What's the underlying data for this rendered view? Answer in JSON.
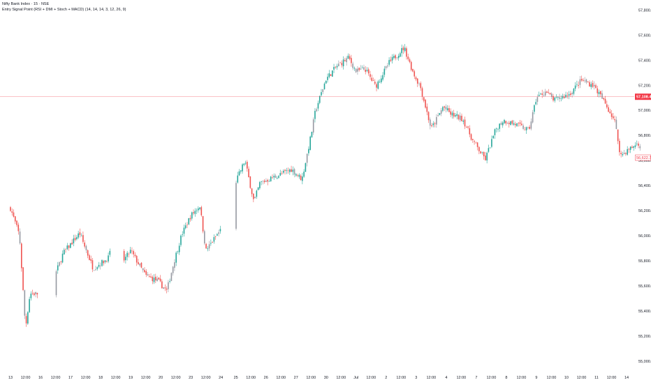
{
  "legend": {
    "symbol_line": "Nifty Bank Index · 15 · NSE",
    "indicator_line": "Entry Signal Point (RSI + DMI + Stoch + MACD) (14, 14, 14, 3, 12, 26, 9)"
  },
  "colors": {
    "up": "#26a69a",
    "down": "#ef5350",
    "neutral": "#9598a1",
    "price_line": "#f23645",
    "axis_text": "#131722"
  },
  "chart_data": {
    "type": "candlestick",
    "title": "Nifty Bank Index · 15 · NSE",
    "y_ticks": [
      "57,800.00",
      "57,600.00",
      "57,400.00",
      "57,200.00",
      "57,000.00",
      "56,800.00",
      "56,600.00",
      "56,400.00",
      "56,200.00",
      "56,000.00",
      "55,800.00",
      "55,600.00",
      "55,400.00",
      "55,200.00",
      "55,000.00"
    ],
    "y_tick_values": [
      57800,
      57600,
      57400,
      57200,
      57000,
      56800,
      56600,
      56400,
      56200,
      56000,
      55800,
      55600,
      55400,
      55200,
      55000
    ],
    "ylim": [
      54960,
      57880
    ],
    "x_ticks": [
      "13",
      "12:00",
      "16",
      "12:00",
      "17",
      "12:00",
      "18",
      "12:00",
      "19",
      "12:00",
      "20",
      "12:00",
      "23",
      "12:00",
      "24",
      "25",
      "12:00",
      "26",
      "12:00",
      "27",
      "12:00",
      "30",
      "12:00",
      "Jul",
      "12:00",
      "2",
      "12:00",
      "3",
      "12:00",
      "4",
      "12:00",
      "7",
      "12:00",
      "8",
      "12:00",
      "9",
      "12:00",
      "10",
      "12:00",
      "11",
      "12:00",
      "14"
    ],
    "x_tick_slots": [
      0,
      1,
      2,
      3,
      4,
      5,
      6,
      7,
      8,
      9,
      10,
      11,
      12,
      13,
      14,
      15,
      16,
      17,
      18,
      19,
      20,
      21,
      22,
      23,
      24,
      25,
      26,
      27,
      28,
      29,
      30,
      31,
      32,
      33,
      34,
      35,
      36,
      37,
      38,
      39,
      40,
      41
    ],
    "slots": 42,
    "price_label_current": "57,108.40",
    "price_current": 57108.4,
    "price_label_last": "56,622.75",
    "price_last": 56622.75,
    "path": [
      [
        0,
        56220
      ],
      [
        0.6,
        56000
      ],
      [
        1.0,
        55260
      ],
      [
        1.3,
        55540
      ],
      [
        2.5,
        55530
      ],
      [
        3.5,
        55860
      ],
      [
        4.6,
        56020
      ],
      [
        5.5,
        55740
      ],
      [
        6.5,
        55820
      ],
      [
        6.9,
        55950
      ],
      [
        7.4,
        55780
      ],
      [
        8.0,
        55880
      ],
      [
        9.0,
        55680
      ],
      [
        9.8,
        55640
      ],
      [
        10.4,
        55560
      ],
      [
        10.9,
        55800
      ],
      [
        11.4,
        56010
      ],
      [
        12.0,
        56160
      ],
      [
        12.6,
        56240
      ],
      [
        13.0,
        55880
      ],
      [
        14.0,
        56050
      ],
      [
        14.4,
        56110
      ],
      [
        14.8,
        56010
      ],
      [
        15.0,
        56430
      ],
      [
        15.6,
        56600
      ],
      [
        16.2,
        56270
      ],
      [
        16.6,
        56420
      ],
      [
        17.8,
        56480
      ],
      [
        18.7,
        56530
      ],
      [
        19.4,
        56450
      ],
      [
        20.0,
        56800
      ],
      [
        20.3,
        57000
      ],
      [
        21.0,
        57250
      ],
      [
        21.7,
        57350
      ],
      [
        22.5,
        57420
      ],
      [
        23.0,
        57310
      ],
      [
        23.6,
        57330
      ],
      [
        24.3,
        57190
      ],
      [
        25.2,
        57380
      ],
      [
        26.2,
        57500
      ],
      [
        26.8,
        57300
      ],
      [
        27.3,
        57180
      ],
      [
        28.0,
        56850
      ],
      [
        28.8,
        57030
      ],
      [
        29.3,
        56970
      ],
      [
        30.1,
        56930
      ],
      [
        30.8,
        56750
      ],
      [
        31.6,
        56610
      ],
      [
        32.3,
        56850
      ],
      [
        32.8,
        56920
      ],
      [
        33.6,
        56890
      ],
      [
        34.5,
        56840
      ],
      [
        35.0,
        57100
      ],
      [
        35.6,
        57150
      ],
      [
        36.2,
        57080
      ],
      [
        37.2,
        57130
      ],
      [
        38.0,
        57240
      ],
      [
        38.8,
        57200
      ],
      [
        39.4,
        57090
      ],
      [
        40.2,
        56920
      ],
      [
        40.6,
        56640
      ],
      [
        41.3,
        56700
      ],
      [
        41.8,
        56740
      ],
      [
        42.0,
        56622.75
      ]
    ],
    "gaps": [
      [
        2.4,
        55600,
        0.55
      ],
      [
        7.1,
        55640,
        0.45
      ],
      [
        14.5,
        56100,
        0.5
      ]
    ]
  }
}
